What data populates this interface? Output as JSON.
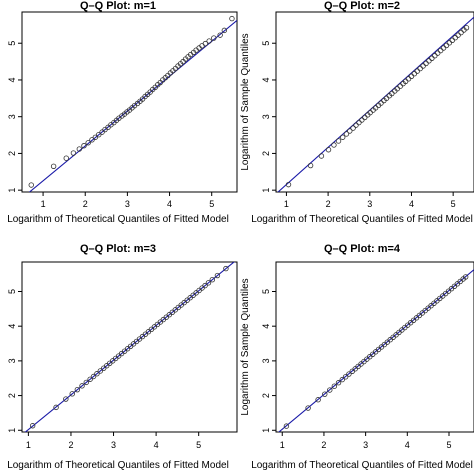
{
  "chart_data": [
    {
      "type": "scatter",
      "title": "Q–Q Plot: m=1",
      "xlabel": "Logarithm of  Theoretical Quantiles of Fitted Model",
      "ylabel": "",
      "x_ticks": [
        "1",
        "2",
        "3",
        "4",
        "5"
      ],
      "y_ticks": [
        "1",
        "2",
        "3",
        "4",
        "5"
      ],
      "xlim": [
        0.5,
        5.6
      ],
      "ylim": [
        0.95,
        5.85
      ],
      "reference_line": {
        "x": [
          0.5,
          5.6
        ],
        "y": [
          0.78,
          5.62
        ]
      },
      "points": [
        [
          0.72,
          1.14
        ],
        [
          1.25,
          1.65
        ],
        [
          1.55,
          1.87
        ],
        [
          1.72,
          2.01
        ],
        [
          1.86,
          2.12
        ],
        [
          1.97,
          2.21
        ],
        [
          2.07,
          2.29
        ],
        [
          2.16,
          2.37
        ],
        [
          2.24,
          2.44
        ],
        [
          2.32,
          2.51
        ],
        [
          2.4,
          2.58
        ],
        [
          2.47,
          2.65
        ],
        [
          2.54,
          2.71
        ],
        [
          2.61,
          2.78
        ],
        [
          2.68,
          2.84
        ],
        [
          2.74,
          2.9
        ],
        [
          2.8,
          2.96
        ],
        [
          2.87,
          3.02
        ],
        [
          2.93,
          3.07
        ],
        [
          2.99,
          3.13
        ],
        [
          3.05,
          3.18
        ],
        [
          3.11,
          3.24
        ],
        [
          3.17,
          3.3
        ],
        [
          3.24,
          3.36
        ],
        [
          3.3,
          3.42
        ],
        [
          3.36,
          3.48
        ],
        [
          3.42,
          3.55
        ],
        [
          3.48,
          3.61
        ],
        [
          3.54,
          3.67
        ],
        [
          3.6,
          3.74
        ],
        [
          3.66,
          3.8
        ],
        [
          3.72,
          3.87
        ],
        [
          3.78,
          3.93
        ],
        [
          3.84,
          4.0
        ],
        [
          3.9,
          4.06
        ],
        [
          3.96,
          4.12
        ],
        [
          4.02,
          4.19
        ],
        [
          4.08,
          4.25
        ],
        [
          4.14,
          4.31
        ],
        [
          4.2,
          4.38
        ],
        [
          4.26,
          4.44
        ],
        [
          4.32,
          4.5
        ],
        [
          4.38,
          4.57
        ],
        [
          4.44,
          4.63
        ],
        [
          4.5,
          4.69
        ],
        [
          4.57,
          4.75
        ],
        [
          4.63,
          4.81
        ],
        [
          4.7,
          4.87
        ],
        [
          4.77,
          4.93
        ],
        [
          4.85,
          4.99
        ],
        [
          4.94,
          5.06
        ],
        [
          5.05,
          5.14
        ],
        [
          5.2,
          5.22
        ],
        [
          5.3,
          5.35
        ],
        [
          5.48,
          5.67
        ]
      ]
    },
    {
      "type": "scatter",
      "title": "Q–Q Plot: m=2",
      "xlabel": "Logarithm of Theoretical Quantiles of Fitted Model",
      "ylabel": "Logarithm of Sample Quantiles",
      "x_ticks": [
        "1",
        "2",
        "3",
        "4",
        "5"
      ],
      "y_ticks": [
        "1",
        "2",
        "3",
        "4",
        "5"
      ],
      "xlim": [
        0.75,
        5.5
      ],
      "ylim": [
        0.95,
        5.85
      ],
      "reference_line": {
        "x": [
          0.75,
          5.5
        ],
        "y": [
          0.9,
          5.71
        ]
      },
      "points": [
        [
          1.05,
          1.15
        ],
        [
          1.58,
          1.67
        ],
        [
          1.84,
          1.93
        ],
        [
          2.01,
          2.1
        ],
        [
          2.14,
          2.23
        ],
        [
          2.25,
          2.34
        ],
        [
          2.35,
          2.44
        ],
        [
          2.44,
          2.53
        ],
        [
          2.52,
          2.61
        ],
        [
          2.6,
          2.69
        ],
        [
          2.67,
          2.77
        ],
        [
          2.74,
          2.84
        ],
        [
          2.81,
          2.91
        ],
        [
          2.88,
          2.98
        ],
        [
          2.95,
          3.05
        ],
        [
          3.01,
          3.11
        ],
        [
          3.08,
          3.18
        ],
        [
          3.14,
          3.24
        ],
        [
          3.21,
          3.31
        ],
        [
          3.27,
          3.37
        ],
        [
          3.34,
          3.44
        ],
        [
          3.4,
          3.5
        ],
        [
          3.47,
          3.57
        ],
        [
          3.53,
          3.63
        ],
        [
          3.6,
          3.7
        ],
        [
          3.66,
          3.76
        ],
        [
          3.73,
          3.83
        ],
        [
          3.8,
          3.9
        ],
        [
          3.86,
          3.96
        ],
        [
          3.93,
          4.03
        ],
        [
          4.0,
          4.1
        ],
        [
          4.07,
          4.17
        ],
        [
          4.14,
          4.24
        ],
        [
          4.21,
          4.31
        ],
        [
          4.28,
          4.38
        ],
        [
          4.35,
          4.45
        ],
        [
          4.42,
          4.52
        ],
        [
          4.49,
          4.59
        ],
        [
          4.56,
          4.66
        ],
        [
          4.63,
          4.73
        ],
        [
          4.7,
          4.8
        ],
        [
          4.77,
          4.87
        ],
        [
          4.84,
          4.94
        ],
        [
          4.91,
          5.01
        ],
        [
          4.98,
          5.08
        ],
        [
          5.05,
          5.15
        ],
        [
          5.12,
          5.22
        ],
        [
          5.19,
          5.29
        ],
        [
          5.26,
          5.36
        ],
        [
          5.32,
          5.42
        ]
      ]
    },
    {
      "type": "scatter",
      "title": "Q–Q Plot: m=3",
      "xlabel": "Logarithm of Theoretical Quantiles of Fitted Model",
      "ylabel": "",
      "x_ticks": [
        "1",
        "2",
        "3",
        "4",
        "5"
      ],
      "y_ticks": [
        "1",
        "2",
        "3",
        "4",
        "5"
      ],
      "xlim": [
        0.85,
        5.9
      ],
      "ylim": [
        0.95,
        5.85
      ],
      "reference_line": {
        "x": [
          0.85,
          5.9
        ],
        "y": [
          0.87,
          5.92
        ]
      },
      "points": [
        [
          1.1,
          1.13
        ],
        [
          1.65,
          1.66
        ],
        [
          1.88,
          1.9
        ],
        [
          2.03,
          2.05
        ],
        [
          2.15,
          2.17
        ],
        [
          2.26,
          2.28
        ],
        [
          2.36,
          2.38
        ],
        [
          2.45,
          2.47
        ],
        [
          2.53,
          2.55
        ],
        [
          2.61,
          2.63
        ],
        [
          2.69,
          2.71
        ],
        [
          2.77,
          2.79
        ],
        [
          2.84,
          2.86
        ],
        [
          2.91,
          2.93
        ],
        [
          2.98,
          3.0
        ],
        [
          3.05,
          3.07
        ],
        [
          3.12,
          3.14
        ],
        [
          3.19,
          3.21
        ],
        [
          3.26,
          3.28
        ],
        [
          3.33,
          3.35
        ],
        [
          3.4,
          3.42
        ],
        [
          3.47,
          3.49
        ],
        [
          3.54,
          3.56
        ],
        [
          3.61,
          3.63
        ],
        [
          3.68,
          3.7
        ],
        [
          3.75,
          3.77
        ],
        [
          3.82,
          3.84
        ],
        [
          3.89,
          3.91
        ],
        [
          3.96,
          3.98
        ],
        [
          4.03,
          4.05
        ],
        [
          4.1,
          4.12
        ],
        [
          4.17,
          4.19
        ],
        [
          4.24,
          4.26
        ],
        [
          4.31,
          4.33
        ],
        [
          4.38,
          4.4
        ],
        [
          4.45,
          4.47
        ],
        [
          4.52,
          4.54
        ],
        [
          4.59,
          4.61
        ],
        [
          4.66,
          4.68
        ],
        [
          4.73,
          4.75
        ],
        [
          4.8,
          4.82
        ],
        [
          4.87,
          4.89
        ],
        [
          4.94,
          4.96
        ],
        [
          5.01,
          5.03
        ],
        [
          5.08,
          5.1
        ],
        [
          5.15,
          5.17
        ],
        [
          5.23,
          5.25
        ],
        [
          5.32,
          5.34
        ],
        [
          5.44,
          5.46
        ],
        [
          5.64,
          5.66
        ]
      ]
    },
    {
      "type": "scatter",
      "title": "Q–Q Plot: m=4",
      "xlabel": "Logarithm of Theoretical Quantiles of Fitted Model",
      "ylabel": "Logarithm of Sample Quantiles",
      "x_ticks": [
        "1",
        "2",
        "3",
        "4",
        "5"
      ],
      "y_ticks": [
        "1",
        "2",
        "3",
        "4",
        "5"
      ],
      "xlim": [
        0.85,
        5.6
      ],
      "ylim": [
        0.95,
        5.85
      ],
      "reference_line": {
        "x": [
          0.85,
          5.6
        ],
        "y": [
          0.88,
          5.63
        ]
      },
      "points": [
        [
          1.1,
          1.12
        ],
        [
          1.62,
          1.64
        ],
        [
          1.86,
          1.88
        ],
        [
          2.02,
          2.04
        ],
        [
          2.14,
          2.16
        ],
        [
          2.25,
          2.27
        ],
        [
          2.35,
          2.37
        ],
        [
          2.44,
          2.46
        ],
        [
          2.52,
          2.54
        ],
        [
          2.6,
          2.62
        ],
        [
          2.68,
          2.7
        ],
        [
          2.75,
          2.77
        ],
        [
          2.82,
          2.84
        ],
        [
          2.89,
          2.91
        ],
        [
          2.96,
          2.98
        ],
        [
          3.03,
          3.05
        ],
        [
          3.1,
          3.12
        ],
        [
          3.17,
          3.19
        ],
        [
          3.24,
          3.26
        ],
        [
          3.31,
          3.33
        ],
        [
          3.38,
          3.4
        ],
        [
          3.45,
          3.47
        ],
        [
          3.52,
          3.54
        ],
        [
          3.59,
          3.61
        ],
        [
          3.66,
          3.68
        ],
        [
          3.73,
          3.75
        ],
        [
          3.8,
          3.82
        ],
        [
          3.87,
          3.89
        ],
        [
          3.94,
          3.96
        ],
        [
          4.01,
          4.03
        ],
        [
          4.08,
          4.1
        ],
        [
          4.15,
          4.17
        ],
        [
          4.22,
          4.24
        ],
        [
          4.29,
          4.31
        ],
        [
          4.36,
          4.38
        ],
        [
          4.43,
          4.45
        ],
        [
          4.5,
          4.52
        ],
        [
          4.57,
          4.59
        ],
        [
          4.64,
          4.66
        ],
        [
          4.71,
          4.73
        ],
        [
          4.78,
          4.8
        ],
        [
          4.85,
          4.87
        ],
        [
          4.92,
          4.94
        ],
        [
          4.99,
          5.01
        ],
        [
          5.06,
          5.08
        ],
        [
          5.13,
          5.15
        ],
        [
          5.2,
          5.22
        ],
        [
          5.27,
          5.29
        ],
        [
          5.34,
          5.36
        ],
        [
          5.4,
          5.42
        ]
      ]
    }
  ],
  "colors": {
    "line": "#1a1aa8",
    "points": "#333333",
    "axis": "#000000",
    "highlight": "#e6f26a"
  }
}
